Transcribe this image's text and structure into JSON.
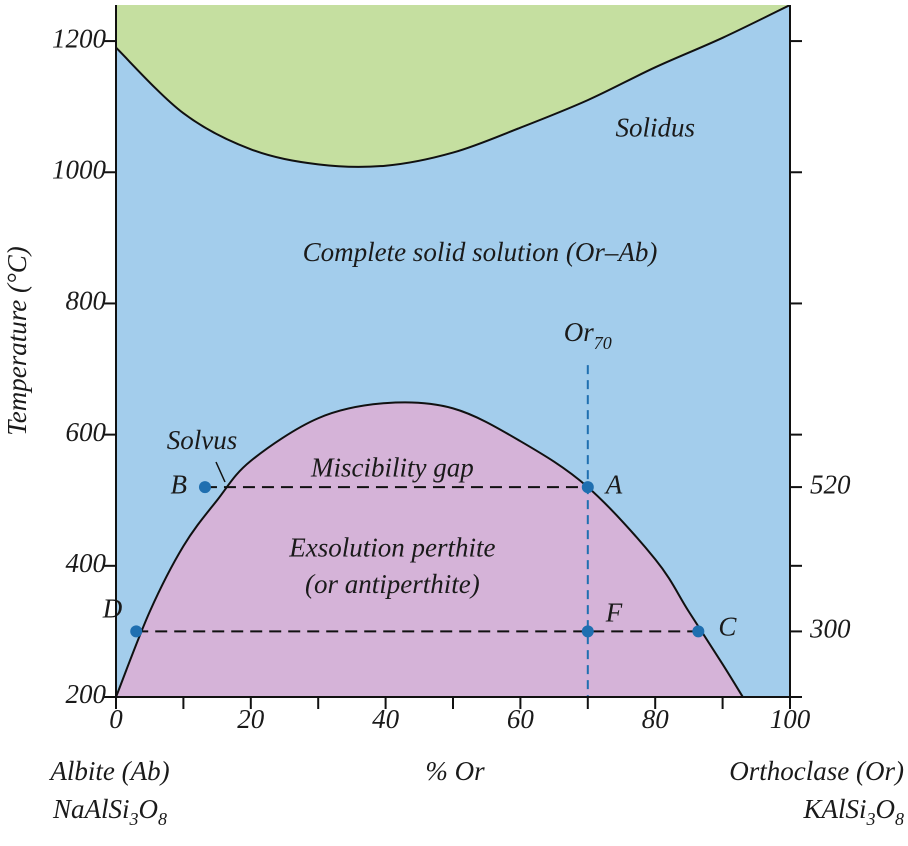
{
  "chart_data": {
    "type": "phase-diagram",
    "y_label": "Temperature (°C)",
    "x_label": "% Or",
    "xlim": [
      0,
      100
    ],
    "xticks": [
      0,
      20,
      40,
      60,
      80,
      100
    ],
    "x_minor_ticks": [
      10,
      30,
      50,
      70,
      90
    ],
    "ylim": [
      200,
      1255
    ],
    "yticks": [
      200,
      400,
      600,
      800,
      1000,
      1200
    ],
    "y2ticks": [
      300,
      520
    ],
    "colors": {
      "liquid": "#c5dfa0",
      "solid_solution": "#a3cdec",
      "gap": "#d5b3d8",
      "points": "#1f6fb0",
      "dashes": "#1f6fb0"
    },
    "regions": [
      "Solidus",
      "Complete solid solution (Or–Ab)",
      "Miscibility gap",
      "Exsolution perthite",
      "(or antiperthite)"
    ],
    "solvus_label": "Solvus",
    "solidus": {
      "x": [
        0,
        10,
        20,
        30,
        40,
        50,
        60,
        70,
        80,
        90,
        100
      ],
      "y": [
        1190,
        1090,
        1035,
        1012,
        1010,
        1030,
        1068,
        1110,
        1160,
        1205,
        1255
      ]
    },
    "solvus": {
      "x": [
        0,
        5,
        10,
        15,
        20,
        30,
        40,
        50,
        60,
        70,
        80,
        85,
        90,
        93
      ],
      "y": [
        200,
        330,
        430,
        500,
        560,
        625,
        648,
        640,
        590,
        520,
        410,
        330,
        250,
        200
      ]
    },
    "points": [
      {
        "label": "A",
        "x": 70,
        "y": 520
      },
      {
        "label": "B",
        "x": 13.2,
        "y": 520
      },
      {
        "label": "C",
        "x": 86.4,
        "y": 300
      },
      {
        "label": "D",
        "x": 3,
        "y": 300
      },
      {
        "label": "F",
        "x": 70,
        "y": 300
      }
    ],
    "composition_line": {
      "label": [
        "Or",
        "70"
      ],
      "x": 70,
      "top": 706
    },
    "left_end": {
      "name": "Albite (Ab)",
      "formula": [
        "NaAlSi",
        "3",
        "O",
        "8"
      ]
    },
    "right_end": {
      "name": "Orthoclase (Or)",
      "formula": [
        "KAlSi",
        "3",
        "O",
        "8"
      ]
    }
  }
}
